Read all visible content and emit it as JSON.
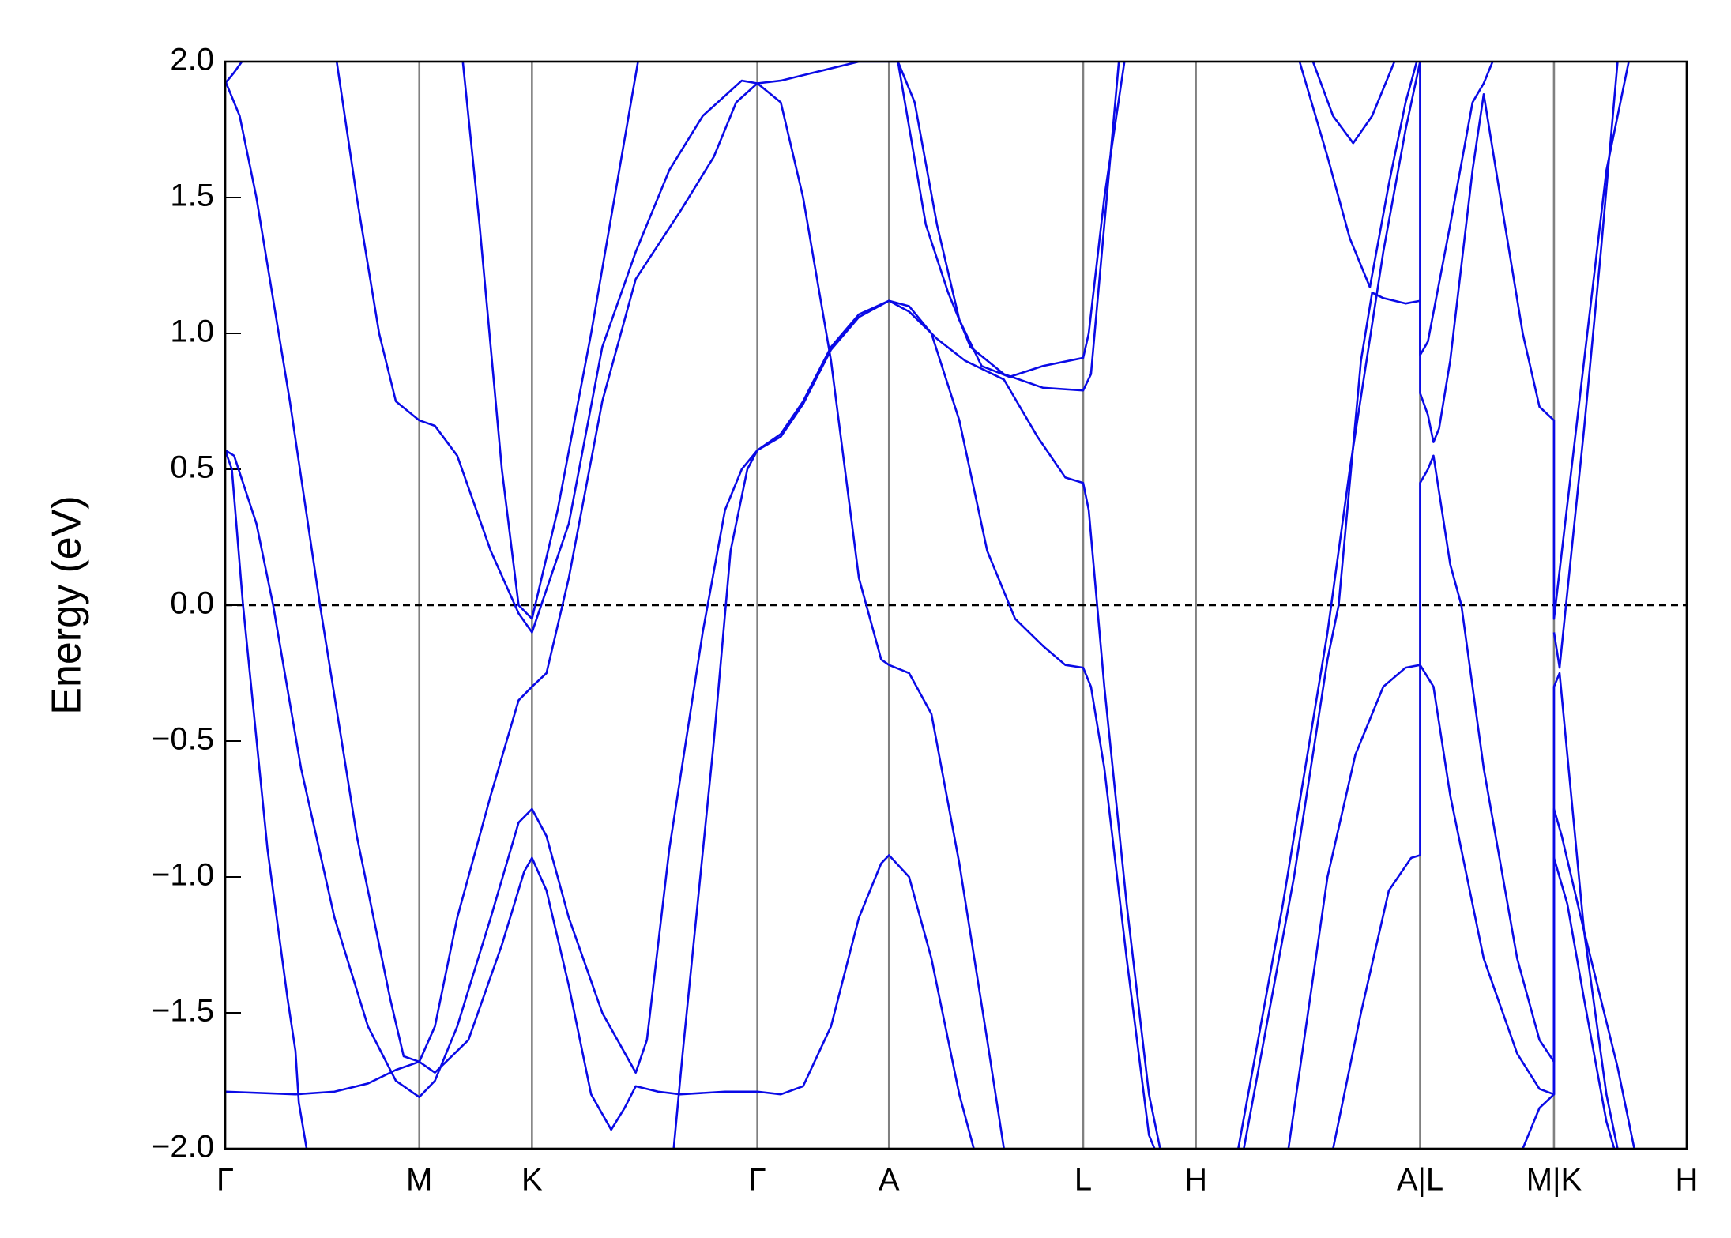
{
  "chart_data": {
    "type": "line",
    "y_label": "Energy (eV)",
    "xlim": [
      0,
      13.1
    ],
    "ylim": [
      -2,
      2
    ],
    "xticks": [
      {
        "value": 0,
        "label": "Γ"
      },
      {
        "value": 1.74,
        "label": "M"
      },
      {
        "value": 2.75,
        "label": "K"
      },
      {
        "value": 4.77,
        "label": "Γ"
      },
      {
        "value": 5.95,
        "label": "A"
      },
      {
        "value": 7.69,
        "label": "L"
      },
      {
        "value": 8.7,
        "label": "H"
      },
      {
        "value": 10.71,
        "label": "A|L"
      },
      {
        "value": 11.91,
        "label": "M|K"
      },
      {
        "value": 13.1,
        "label": "H"
      }
    ],
    "yticks": [
      {
        "value": -2,
        "label": "−2.0"
      },
      {
        "value": -1.5,
        "label": "−1.5"
      },
      {
        "value": -1,
        "label": "−1.0"
      },
      {
        "value": -0.5,
        "label": "−0.5"
      },
      {
        "value": 0,
        "label": "0.0"
      },
      0.5,
      {
        "value": 1,
        "label": "1.0"
      },
      1.5,
      {
        "value": 2,
        "label": "2.0"
      }
    ],
    "hline": 0,
    "vlines": true,
    "series": [
      {
        "color": "#0a0ae6",
        "x": [
          0,
          0.08,
          0.15
        ],
        "values": [
          1.92,
          1.96,
          2.0
        ]
      },
      {
        "color": "#0a0ae6",
        "x": [
          0,
          0.13,
          0.28,
          0.58,
          0.85,
          1.18,
          1.48,
          1.6,
          1.74,
          1.88,
          2.08,
          2.38,
          2.63,
          2.75,
          2.88,
          3.08,
          3.38,
          3.68,
          4.08,
          4.38,
          4.58,
          4.77,
          4.98,
          5.38,
          5.68,
          5.95
        ],
        "values": [
          1.93,
          1.8,
          1.5,
          0.75,
          0,
          -0.85,
          -1.45,
          -1.66,
          -1.68,
          -1.55,
          -1.15,
          -0.7,
          -0.35,
          -0.3,
          -0.25,
          0.1,
          0.75,
          1.2,
          1.45,
          1.65,
          1.85,
          1.92,
          1.93,
          1.97,
          2.0,
          2.0
        ]
      },
      {
        "color": "#0a0ae6",
        "x": [
          0,
          0.08,
          0.28,
          0.43,
          0.68,
          0.98,
          1.28,
          1.53,
          1.74,
          1.88,
          2.08,
          2.38,
          2.63,
          2.75,
          2.88,
          3.08,
          3.38,
          3.68,
          3.78,
          3.98,
          4.28,
          4.48,
          4.63,
          4.77,
          4.98,
          5.18,
          5.43,
          5.68,
          5.95,
          6.13,
          6.38,
          6.63,
          6.98,
          7.28,
          7.53,
          7.69,
          7.74,
          7.88,
          8.08,
          8.28,
          8.38
        ],
        "values": [
          0.57,
          0.55,
          0.3,
          0,
          -0.6,
          -1.15,
          -1.55,
          -1.75,
          -1.81,
          -1.75,
          -1.55,
          -1.15,
          -0.8,
          -0.75,
          -0.85,
          -1.15,
          -1.5,
          -1.72,
          -1.6,
          -0.9,
          -0.1,
          0.35,
          0.5,
          0.57,
          0.63,
          0.75,
          0.95,
          1.07,
          1.12,
          1.08,
          0.98,
          0.9,
          0.83,
          0.62,
          0.47,
          0.45,
          0.35,
          -0.3,
          -1.1,
          -1.8,
          -2.0
        ]
      },
      {
        "color": "#0a0ae6",
        "x": [
          0,
          0.06,
          0.16,
          0.38,
          0.56,
          0.63,
          0.66,
          0.73
        ],
        "values": [
          0.57,
          0.5,
          0,
          -0.9,
          -1.45,
          -1.64,
          -1.83,
          -2.0
        ]
      },
      {
        "color": "#0a0ae6",
        "x": [
          0,
          0.63,
          0.98,
          1.28,
          1.53,
          1.74,
          1.88,
          2.18,
          2.48,
          2.68,
          2.75,
          2.88,
          3.08,
          3.28,
          3.46,
          3.58,
          3.68,
          3.88,
          4.08,
          4.48,
          4.77,
          4.98,
          5.18,
          5.43,
          5.68,
          5.88,
          5.95,
          6.13,
          6.33,
          6.58,
          6.71
        ],
        "values": [
          -1.79,
          -1.8,
          -1.79,
          -1.76,
          -1.71,
          -1.68,
          -1.72,
          -1.6,
          -1.25,
          -0.98,
          -0.93,
          -1.05,
          -1.4,
          -1.8,
          -1.93,
          -1.85,
          -1.77,
          -1.79,
          -1.8,
          -1.79,
          -1.79,
          -1.8,
          -1.77,
          -1.55,
          -1.15,
          -0.95,
          -0.92,
          -1.0,
          -1.3,
          -1.8,
          -2.0
        ]
      },
      {
        "color": "#0a0ae6",
        "x": [
          1.0,
          1.18,
          1.38,
          1.53,
          1.74,
          1.88,
          2.08,
          2.38,
          2.63,
          2.75,
          3.08,
          3.38,
          3.68,
          3.98,
          4.28,
          4.63,
          4.77,
          4.98,
          5.18,
          5.43,
          5.68,
          5.88,
          5.95,
          6.13,
          6.33,
          6.58,
          6.83,
          6.98
        ],
        "values": [
          2.0,
          1.5,
          1.0,
          0.75,
          0.68,
          0.66,
          0.55,
          0.2,
          -0.03,
          -0.1,
          0.3,
          0.95,
          1.3,
          1.6,
          1.8,
          1.93,
          1.92,
          1.85,
          1.5,
          0.9,
          0.1,
          -0.2,
          -0.22,
          -0.25,
          -0.4,
          -0.95,
          -1.6,
          -2.0
        ]
      },
      {
        "color": "#0a0ae6",
        "x": [
          2.13,
          2.28,
          2.48,
          2.63,
          2.75,
          2.98,
          3.28,
          3.7
        ],
        "values": [
          2.0,
          1.4,
          0.5,
          0.0,
          -0.05,
          0.35,
          1.0,
          2.0
        ]
      },
      {
        "color": "#0a0ae6",
        "x": [
          4.02,
          4.1,
          4.38,
          4.53,
          4.68,
          4.77,
          4.98,
          5.18,
          5.43,
          5.68,
          5.95,
          6.13,
          6.33,
          6.58,
          6.83,
          7.08,
          7.33,
          7.53,
          7.69,
          7.76,
          7.88,
          8.08,
          8.28,
          8.33
        ],
        "values": [
          -2.0,
          -1.65,
          -0.5,
          0.2,
          0.5,
          0.57,
          0.62,
          0.74,
          0.94,
          1.06,
          1.12,
          1.1,
          1.0,
          0.68,
          0.2,
          -0.05,
          -0.15,
          -0.22,
          -0.23,
          -0.3,
          -0.6,
          -1.3,
          -1.95,
          -2.0
        ]
      },
      {
        "color": "#0a0ae6",
        "x": [
          5.95,
          6.03,
          6.18,
          6.38,
          6.58,
          6.78,
          7.03,
          7.33,
          7.69,
          7.74,
          7.88,
          8.06
        ],
        "values": [
          2.0,
          2.0,
          1.85,
          1.4,
          1.05,
          0.88,
          0.84,
          0.88,
          0.91,
          1.0,
          1.5,
          2.0
        ]
      },
      {
        "color": "#0a0ae6",
        "x": [
          6.03,
          6.28,
          6.48,
          6.68,
          6.98,
          7.33,
          7.69,
          7.76,
          7.88,
          8.01
        ],
        "values": [
          2.0,
          1.4,
          1.15,
          0.95,
          0.85,
          0.8,
          0.79,
          0.85,
          1.4,
          2.0
        ]
      },
      {
        "color": "#0a0ae6",
        "x": [
          9.13,
          9.58,
          9.88,
          9.98,
          10.18,
          10.28,
          10.38,
          10.58,
          10.71,
          10.71,
          10.78,
          10.98,
          11.18,
          11.28,
          11.36
        ],
        "values": [
          -2.0,
          -1.0,
          -0.2,
          0,
          0.9,
          1.15,
          1.13,
          1.11,
          1.12,
          0.92,
          0.97,
          1.4,
          1.85,
          1.92,
          2.0
        ]
      },
      {
        "color": "#0a0ae6",
        "x": [
          9.08,
          9.48,
          9.88,
          10.08,
          10.38,
          10.58,
          10.71,
          10.71,
          10.78,
          10.83,
          10.88,
          10.98,
          11.18,
          11.28,
          11.43,
          11.63,
          11.78,
          11.91,
          11.91,
          12.18,
          12.38,
          12.58
        ],
        "values": [
          -2.0,
          -1.1,
          -0.1,
          0.5,
          1.3,
          1.75,
          2.0,
          0.78,
          0.7,
          0.6,
          0.65,
          0.9,
          1.6,
          1.88,
          1.5,
          1.0,
          0.73,
          0.68,
          -0.05,
          0.9,
          1.6,
          2.0
        ]
      },
      {
        "color": "#0a0ae6",
        "x": [
          9.63,
          9.88,
          10.08,
          10.26,
          10.43,
          10.58,
          10.68
        ],
        "values": [
          2.0,
          1.65,
          1.35,
          1.17,
          1.55,
          1.85,
          2.0
        ]
      },
      {
        "color": "#0a0ae6",
        "x": [
          9.75,
          9.93,
          10.11,
          10.28,
          10.48
        ],
        "values": [
          2.0,
          1.8,
          1.7,
          1.8,
          2.0
        ]
      },
      {
        "color": "#0a0ae6",
        "x": [
          9.53,
          9.88,
          10.13,
          10.38,
          10.58,
          10.71,
          10.83,
          10.98,
          11.28,
          11.58,
          11.78,
          11.91,
          11.91,
          12.03,
          12.18,
          12.38,
          12.45
        ],
        "values": [
          -2.0,
          -1.0,
          -0.55,
          -0.3,
          -0.23,
          -0.22,
          -0.3,
          -0.7,
          -1.3,
          -1.65,
          -1.78,
          -1.8,
          -0.93,
          -1.1,
          -1.45,
          -1.9,
          -2.0
        ]
      },
      {
        "color": "#0a0ae6",
        "x": [
          9.93,
          10.18,
          10.43,
          10.63,
          10.71,
          10.71,
          10.78,
          10.83,
          10.98,
          11.08,
          11.28,
          11.58,
          11.78,
          11.91,
          11.91,
          11.98,
          12.18,
          12.48,
          12.63
        ],
        "values": [
          -2.0,
          -1.5,
          -1.05,
          -0.93,
          -0.92,
          0.45,
          0.5,
          0.55,
          0.15,
          0,
          -0.6,
          -1.3,
          -1.6,
          -1.68,
          -0.75,
          -0.85,
          -1.2,
          -1.7,
          -2.0
        ]
      },
      {
        "color": "#0a0ae6",
        "x": [
          11.91,
          11.96,
          12.18,
          12.33,
          12.48
        ],
        "values": [
          -0.1,
          -0.23,
          0.65,
          1.3,
          2.0
        ]
      },
      {
        "color": "#0a0ae6",
        "x": [
          11.63,
          11.78,
          11.91,
          11.91,
          11.96,
          12.18,
          12.38,
          12.48
        ],
        "values": [
          -2.0,
          -1.85,
          -1.8,
          -0.3,
          -0.25,
          -1.2,
          -1.8,
          -2.0
        ]
      }
    ]
  }
}
